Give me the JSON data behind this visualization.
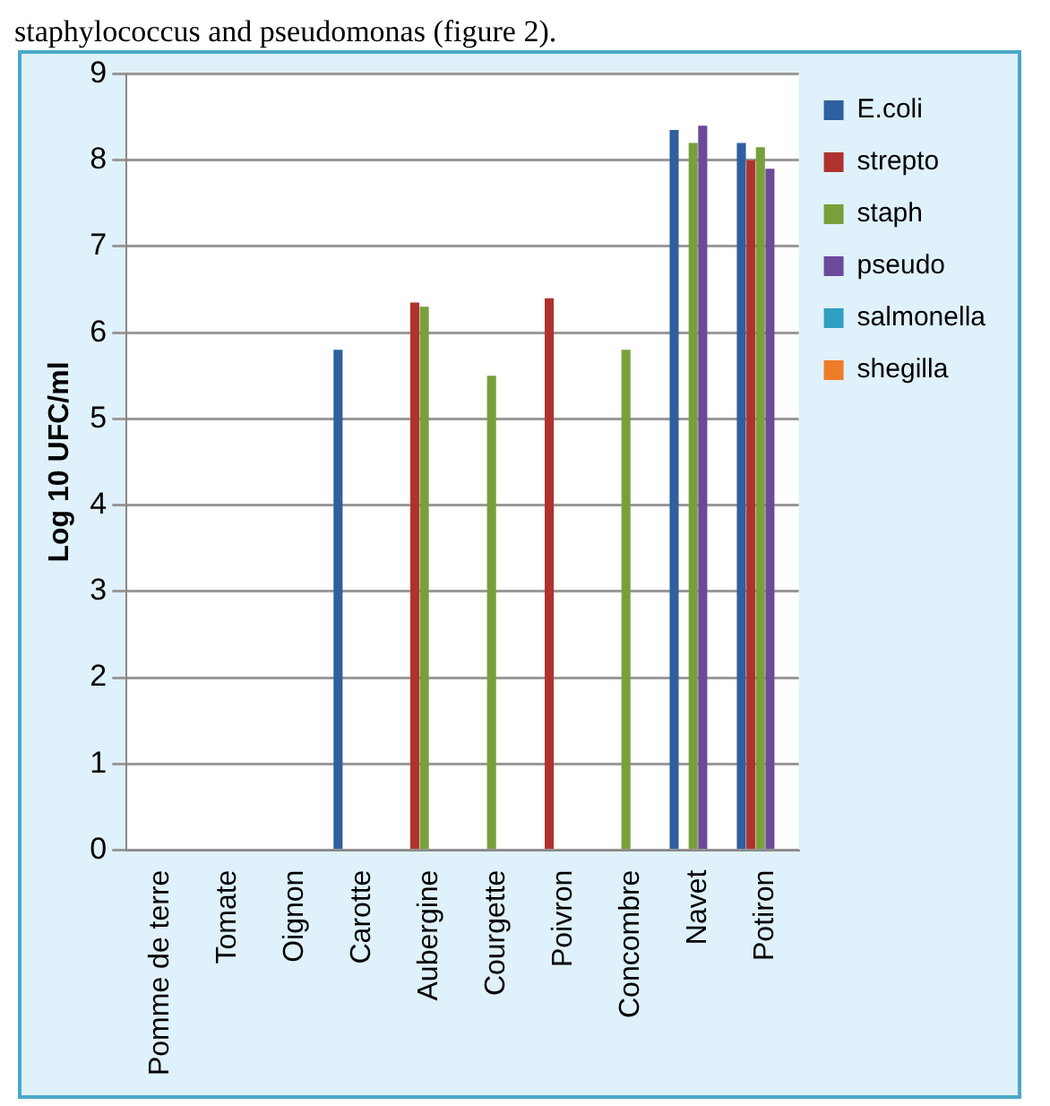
{
  "chart_data": {
    "type": "bar",
    "ylabel": "Log 10 UFC/ml",
    "annotations": [
      "staphylococcus and pseudomonas (figure 2)."
    ],
    "categories": [
      "Pomme de terre",
      "Tomate",
      "Oignon",
      "Carotte",
      "Aubergine",
      "Courgette",
      "Poivron",
      "Concombre",
      "Navet",
      "Potiron"
    ],
    "series": [
      {
        "name": "E.coli",
        "color": "#2f5f9e",
        "values": [
          null,
          null,
          null,
          5.8,
          null,
          null,
          null,
          null,
          8.35,
          8.2
        ]
      },
      {
        "name": "strepto",
        "color": "#b0322e",
        "values": [
          null,
          null,
          null,
          null,
          6.35,
          null,
          6.4,
          null,
          null,
          8.0
        ]
      },
      {
        "name": "staph",
        "color": "#77a03a",
        "values": [
          null,
          null,
          null,
          null,
          6.3,
          5.5,
          null,
          5.8,
          8.2,
          8.15
        ]
      },
      {
        "name": "pseudo",
        "color": "#6b4a9a",
        "values": [
          null,
          null,
          null,
          null,
          null,
          null,
          null,
          null,
          8.4,
          7.9
        ]
      },
      {
        "name": "salmonella",
        "color": "#2f9fc4",
        "values": [
          null,
          null,
          null,
          null,
          null,
          null,
          null,
          null,
          null,
          null
        ]
      },
      {
        "name": "shegilla",
        "color": "#ee7d2a",
        "values": [
          null,
          null,
          null,
          null,
          null,
          null,
          null,
          null,
          null,
          null
        ]
      }
    ],
    "ylim": [
      0,
      9
    ],
    "yticks": [
      0,
      1,
      2,
      3,
      4,
      5,
      6,
      7,
      8,
      9
    ],
    "grid": "y",
    "legend": "right"
  }
}
